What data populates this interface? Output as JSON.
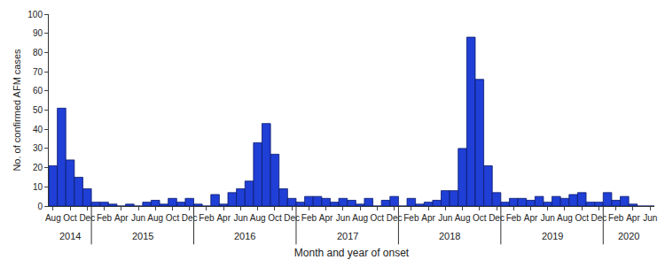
{
  "chart_data": {
    "type": "bar",
    "x_label": "Month and year of onset",
    "y_label": "No. of confirmed AFM cases",
    "categories": [
      "Aug",
      null,
      "Oct",
      null,
      "Dec",
      null,
      "Feb",
      null,
      "Apr",
      null,
      "Jun",
      null,
      "Aug",
      null,
      "Oct",
      null,
      "Dec",
      null,
      "Feb",
      null,
      "Apr",
      null,
      "Jun",
      null,
      "Aug",
      null,
      "Oct",
      null,
      "Dec",
      null,
      "Feb",
      null,
      "Apr",
      null,
      "Jun",
      null,
      "Aug",
      null,
      "Oct",
      null,
      "Dec",
      null,
      "Feb",
      null,
      "Apr",
      null,
      "Jun",
      null,
      "Aug",
      null,
      "Oct",
      null,
      "Dec",
      null,
      "Feb",
      null,
      "Apr",
      null,
      "Jun",
      null,
      "Aug",
      null,
      "Oct",
      null,
      "Dec",
      null,
      "Feb",
      null,
      "Apr",
      null,
      "Jun"
    ],
    "x_groups": [
      {
        "label": "2014",
        "count": 5
      },
      {
        "label": "2015",
        "count": 12
      },
      {
        "label": "2016",
        "count": 12
      },
      {
        "label": "2017",
        "count": 12
      },
      {
        "label": "2018",
        "count": 12
      },
      {
        "label": "2019",
        "count": 12
      },
      {
        "label": "2020",
        "count": 6
      }
    ],
    "values": [
      21,
      51,
      24,
      15,
      9,
      2,
      2,
      1,
      0,
      1,
      0,
      2,
      3,
      1,
      4,
      2,
      4,
      1,
      0,
      6,
      1,
      7,
      9,
      13,
      33,
      43,
      27,
      9,
      4,
      2,
      5,
      5,
      4,
      2,
      4,
      3,
      1,
      4,
      0,
      3,
      5,
      0,
      4,
      1,
      2,
      3,
      8,
      8,
      30,
      88,
      66,
      21,
      7,
      2,
      4,
      4,
      3,
      5,
      2,
      5,
      4,
      6,
      7,
      2,
      2,
      7,
      3,
      5,
      1,
      0,
      0
    ],
    "color": "#1f3fd6",
    "ylim": [
      0,
      100
    ],
    "yticks": [
      0,
      10,
      20,
      30,
      40,
      50,
      60,
      70,
      80,
      90,
      100
    ],
    "grid": false
  }
}
